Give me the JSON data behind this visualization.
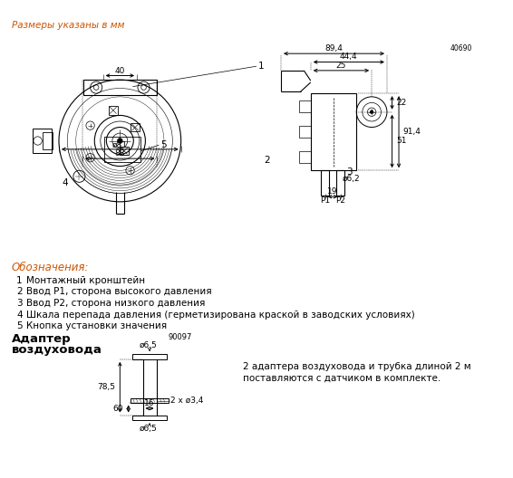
{
  "bg_color": "#ffffff",
  "line_color": "#000000",
  "dim_color": "#000000",
  "orange_color": "#cc5500",
  "fig_width": 5.66,
  "fig_height": 5.28,
  "header_text": "Размеры указаны в мм",
  "legend_header": "Обозначения:",
  "legend_items": [
    {
      "num": "1",
      "text": "Монтажный кронштейн"
    },
    {
      "num": "2",
      "text": "Ввод P1, сторона высокого давления"
    },
    {
      "num": "3",
      "text": "Ввод P2, сторона низкого давления"
    },
    {
      "num": "4",
      "text": "Шкала перепада давления (герметизирована краской в заводских условиях)"
    },
    {
      "num": "5",
      "text": "Кнопка установки значения"
    }
  ],
  "adapter_title_line1": "Адаптер",
  "adapter_title_line2": "воздуховода",
  "adapter_desc_line1": "2 адаптера воздуховода и трубка длиной 2 м",
  "adapter_desc_line2": "поставляются с датчиком в комплекте.",
  "part_no_side": "40690",
  "part_no_adapter": "90097"
}
